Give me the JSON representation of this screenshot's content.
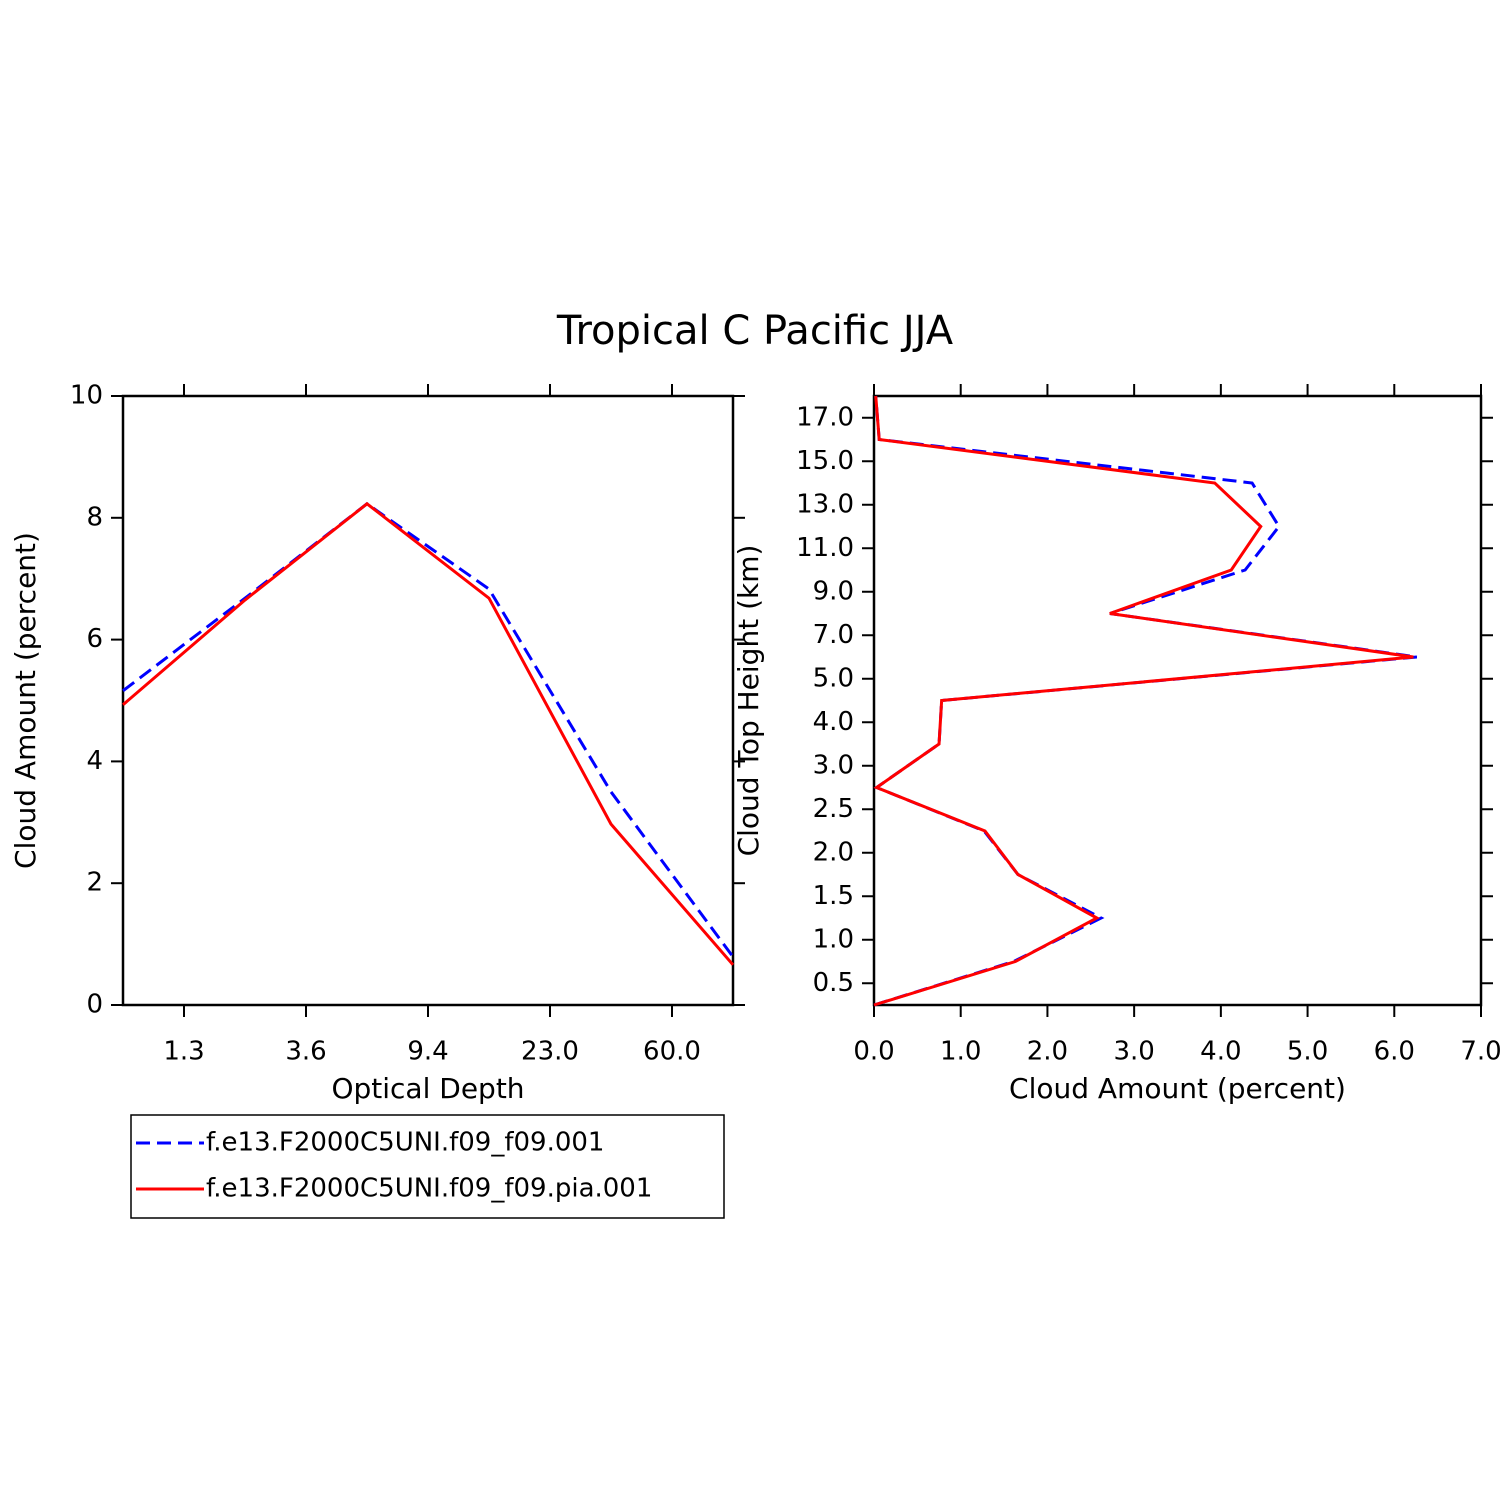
{
  "title": "Tropical C Pacific JJA",
  "chart_data": [
    {
      "type": "line",
      "x_label": "Optical Depth",
      "y_label": "Cloud Amount (percent)",
      "x": [
        0,
        1,
        2,
        3,
        4,
        5
      ],
      "xlim": [
        0,
        5
      ],
      "xticks": [
        {
          "value": 0.5,
          "label": "1.3"
        },
        {
          "value": 1.5,
          "label": "3.6"
        },
        {
          "value": 2.5,
          "label": "9.4"
        },
        {
          "value": 3.5,
          "label": "23.0"
        },
        {
          "value": 4.5,
          "label": "60.0"
        }
      ],
      "ylim": [
        0,
        10
      ],
      "yticks": [
        0,
        2,
        4,
        6,
        8,
        10
      ],
      "series": [
        {
          "name": "f.e13.F2000C5UNI.f09_f09.001",
          "color": "#0000ff",
          "style": "dashed",
          "values": [
            5.16,
            6.68,
            8.23,
            6.83,
            3.5,
            0.79
          ]
        },
        {
          "name": "f.e13.F2000C5UNI.f09_f09.pia.001",
          "color": "#ff0000",
          "style": "solid",
          "values": [
            4.93,
            6.65,
            8.23,
            6.68,
            2.97,
            0.66
          ]
        }
      ]
    },
    {
      "type": "line",
      "orientation": "horizontal",
      "x_label": "Cloud Amount (percent)",
      "y_label": "Cloud Top Height (km)",
      "y": [
        0,
        1,
        2,
        3,
        4,
        5,
        6,
        7,
        8,
        9,
        10,
        11,
        12,
        13,
        14
      ],
      "ylim": [
        0,
        14
      ],
      "yticks": [
        {
          "value": 0.5,
          "label": "0.5"
        },
        {
          "value": 1.5,
          "label": "1.0"
        },
        {
          "value": 2.5,
          "label": "1.5"
        },
        {
          "value": 3.5,
          "label": "2.0"
        },
        {
          "value": 4.5,
          "label": "2.5"
        },
        {
          "value": 5.5,
          "label": "3.0"
        },
        {
          "value": 6.5,
          "label": "4.0"
        },
        {
          "value": 7.5,
          "label": "5.0"
        },
        {
          "value": 8.5,
          "label": "7.0"
        },
        {
          "value": 9.5,
          "label": "9.0"
        },
        {
          "value": 10.5,
          "label": "11.0"
        },
        {
          "value": 11.5,
          "label": "13.0"
        },
        {
          "value": 12.5,
          "label": "15.0"
        },
        {
          "value": 13.5,
          "label": "17.0"
        }
      ],
      "xlim": [
        0,
        7
      ],
      "xticks": [
        {
          "value": 0,
          "label": "0.0"
        },
        {
          "value": 1,
          "label": "1.0"
        },
        {
          "value": 2,
          "label": "2.0"
        },
        {
          "value": 3,
          "label": "3.0"
        },
        {
          "value": 4,
          "label": "4.0"
        },
        {
          "value": 5,
          "label": "5.0"
        },
        {
          "value": 6,
          "label": "6.0"
        },
        {
          "value": 7,
          "label": "7.0"
        }
      ],
      "series": [
        {
          "color": "#0000ff",
          "style": "dashed",
          "values": [
            0.0,
            1.61,
            2.62,
            1.66,
            1.27,
            0.03,
            0.75,
            0.78,
            6.26,
            2.72,
            4.28,
            4.67,
            4.36,
            0.06,
            0.02
          ]
        },
        {
          "color": "#ff0000",
          "style": "solid",
          "values": [
            0.0,
            1.63,
            2.57,
            1.66,
            1.28,
            0.03,
            0.75,
            0.78,
            6.22,
            2.72,
            4.12,
            4.46,
            3.93,
            0.06,
            0.02
          ]
        }
      ]
    }
  ]
}
